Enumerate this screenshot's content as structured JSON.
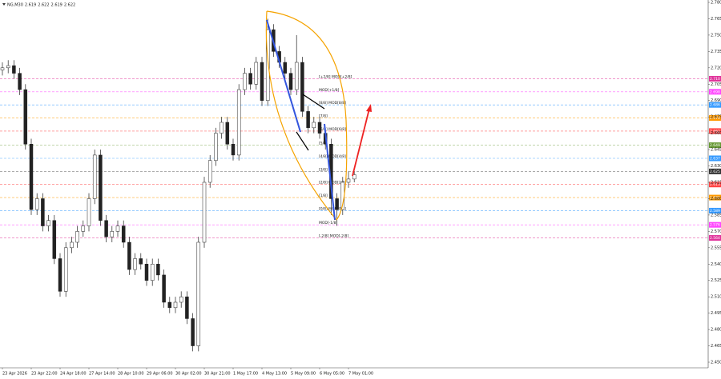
{
  "chart_data": {
    "type": "candlestick",
    "symbol": "NG,M30",
    "quote": [
      2.619,
      2.622,
      2.619,
      2.622
    ],
    "categories": [
      "23 Apr 2026",
      null,
      null,
      null,
      null,
      "23 Apr 22:00",
      null,
      null,
      null,
      null,
      "24 Apr 18:00",
      null,
      null,
      null,
      null,
      "27 Apr 14:00",
      null,
      null,
      null,
      null,
      "28 Apr 10:00",
      null,
      null,
      null,
      null,
      "29 Apr 06:00",
      null,
      null,
      null,
      null,
      "30 Apr 02:00",
      null,
      null,
      null,
      null,
      "30 Apr 21:00",
      null,
      null,
      null,
      null,
      "1 May 17:00",
      null,
      null,
      null,
      null,
      "4 May 13:00",
      null,
      null,
      null,
      null,
      "5 May 09:00",
      null,
      null,
      null,
      null,
      "6 May 05:00",
      null,
      null,
      null,
      null,
      "7 May 01:00",
      null
    ],
    "open": [
      2.718,
      2.72,
      2.722,
      2.715,
      2.7,
      2.65,
      2.59,
      2.6,
      2.575,
      2.58,
      2.545,
      2.515,
      2.555,
      2.56,
      2.57,
      2.575,
      2.6,
      2.64,
      2.58,
      2.565,
      2.57,
      2.575,
      2.56,
      2.535,
      2.545,
      2.54,
      2.525,
      2.54,
      2.53,
      2.505,
      2.5,
      2.505,
      2.51,
      2.49,
      2.465,
      2.56,
      2.615,
      2.635,
      2.66,
      2.67,
      2.65,
      2.64,
      2.7,
      2.715,
      2.705,
      2.725,
      2.69,
      2.755,
      2.735,
      2.725,
      2.715,
      2.7,
      2.725,
      2.68,
      2.665,
      2.67,
      2.66,
      2.65,
      2.6,
      2.59,
      2.615,
      2.618
    ],
    "high": [
      2.725,
      2.727,
      2.727,
      2.72,
      2.705,
      2.655,
      2.605,
      2.605,
      2.585,
      2.585,
      2.55,
      2.56,
      2.565,
      2.575,
      2.58,
      2.605,
      2.645,
      2.645,
      2.585,
      2.575,
      2.58,
      2.58,
      2.565,
      2.55,
      2.55,
      2.545,
      2.545,
      2.545,
      2.535,
      2.51,
      2.51,
      2.515,
      2.515,
      2.495,
      2.565,
      2.62,
      2.64,
      2.665,
      2.675,
      2.675,
      2.655,
      2.705,
      2.72,
      2.72,
      2.73,
      2.73,
      2.765,
      2.76,
      2.74,
      2.73,
      2.72,
      2.75,
      2.73,
      2.685,
      2.675,
      2.675,
      2.665,
      2.655,
      2.605,
      2.62,
      2.625,
      2.625
    ],
    "low": [
      2.713,
      2.715,
      2.71,
      2.695,
      2.645,
      2.585,
      2.585,
      2.57,
      2.57,
      2.54,
      2.51,
      2.51,
      2.55,
      2.555,
      2.565,
      2.57,
      2.595,
      2.575,
      2.56,
      2.56,
      2.565,
      2.555,
      2.53,
      2.53,
      2.535,
      2.52,
      2.52,
      2.525,
      2.5,
      2.495,
      2.495,
      2.5,
      2.485,
      2.46,
      2.46,
      2.555,
      2.61,
      2.63,
      2.655,
      2.645,
      2.635,
      2.635,
      2.695,
      2.7,
      2.7,
      2.685,
      2.685,
      2.73,
      2.72,
      2.71,
      2.695,
      2.695,
      2.675,
      2.66,
      2.66,
      2.655,
      2.645,
      2.585,
      2.575,
      2.585,
      2.61,
      2.615
    ],
    "close": [
      2.72,
      2.722,
      2.715,
      2.7,
      2.65,
      2.59,
      2.6,
      2.575,
      2.58,
      2.545,
      2.515,
      2.555,
      2.56,
      2.57,
      2.575,
      2.6,
      2.64,
      2.58,
      2.565,
      2.57,
      2.575,
      2.56,
      2.535,
      2.545,
      2.54,
      2.525,
      2.54,
      2.53,
      2.505,
      2.5,
      2.505,
      2.51,
      2.49,
      2.465,
      2.56,
      2.615,
      2.635,
      2.66,
      2.67,
      2.65,
      2.64,
      2.7,
      2.715,
      2.705,
      2.725,
      2.69,
      2.755,
      2.735,
      2.725,
      2.715,
      2.7,
      2.725,
      2.68,
      2.665,
      2.67,
      2.66,
      2.65,
      2.6,
      2.59,
      2.615,
      2.618,
      2.622
    ],
    "ylim": [
      2.45,
      2.78
    ],
    "yticks": [
      {
        "value": 2.78,
        "label": "2.780"
      },
      {
        "value": 2.765,
        "label": "2.765"
      },
      {
        "value": 2.75,
        "label": "2.750"
      },
      {
        "value": 2.735,
        "label": "2.735"
      },
      {
        "value": 2.72,
        "label": "2.720"
      },
      {
        "value": 2.705,
        "label": "2.705"
      },
      {
        "value": 2.69,
        "label": "2.690"
      },
      {
        "value": 2.675,
        "label": "2.675"
      },
      {
        "value": 2.66,
        "label": "2.660"
      },
      {
        "value": 2.645,
        "label": "2.645"
      },
      {
        "value": 2.63,
        "label": "2.630"
      },
      {
        "value": 2.615,
        "label": "2.615"
      },
      {
        "value": 2.6,
        "label": "2.600"
      },
      {
        "value": 2.585,
        "label": "2.585"
      },
      {
        "value": 2.57,
        "label": "2.570"
      },
      {
        "value": 2.555,
        "label": "2.555"
      },
      {
        "value": 2.54,
        "label": "2.540"
      },
      {
        "value": 2.525,
        "label": "2.525"
      },
      {
        "value": 2.51,
        "label": "2.510"
      },
      {
        "value": 2.495,
        "label": "2.495"
      },
      {
        "value": 2.48,
        "label": "2.480"
      },
      {
        "value": 2.465,
        "label": "2.465"
      },
      {
        "value": 2.45,
        "label": "2.450"
      }
    ],
    "levels": [
      {
        "name": "[+2/8] MOD[+2/8]",
        "value": 2.71,
        "label": "2.710",
        "color": "#e0339b"
      },
      {
        "name": "MOD[+1/8]",
        "value": 2.698,
        "label": "2.698",
        "color": "#ff44ff"
      },
      {
        "name": "[8/8] MOD[8/8]",
        "value": 2.686,
        "label": "2.686",
        "color": "#3399ff"
      },
      {
        "name": "[7/8]",
        "value": 2.674,
        "label": "2.674",
        "color": "#ff9900"
      },
      {
        "name": "[6/8] MOD[6/8]",
        "value": 2.662,
        "label": "2.662",
        "color": "#ff4444"
      },
      {
        "name": "[5/8]",
        "value": 2.649,
        "label": "2.649",
        "color": "#669933"
      },
      {
        "name": "[4/8] MOD[4/8]",
        "value": 2.637,
        "label": "2.637",
        "color": "#3399ff"
      },
      {
        "name": "[3/8]",
        "value": 2.625,
        "label": "2.625",
        "color": "#333333"
      },
      {
        "name": "[2/8] MOD[2/8]",
        "value": 2.613,
        "label": "2.613",
        "color": "#ff4444"
      },
      {
        "name": "[1/8]",
        "value": 2.601,
        "label": "2.601",
        "color": "#ff9900"
      },
      {
        "name": "[0/8] MOD[0/8]",
        "value": 2.589,
        "label": "2.589",
        "color": "#3399ff"
      },
      {
        "name": "MOD[-1/8]",
        "value": 2.576,
        "label": "2.576",
        "color": "#ff44ff"
      },
      {
        "name": "[-2/8] MOD[-2/8]",
        "value": 2.564,
        "label": "2.564",
        "color": "#e0339b"
      }
    ]
  }
}
